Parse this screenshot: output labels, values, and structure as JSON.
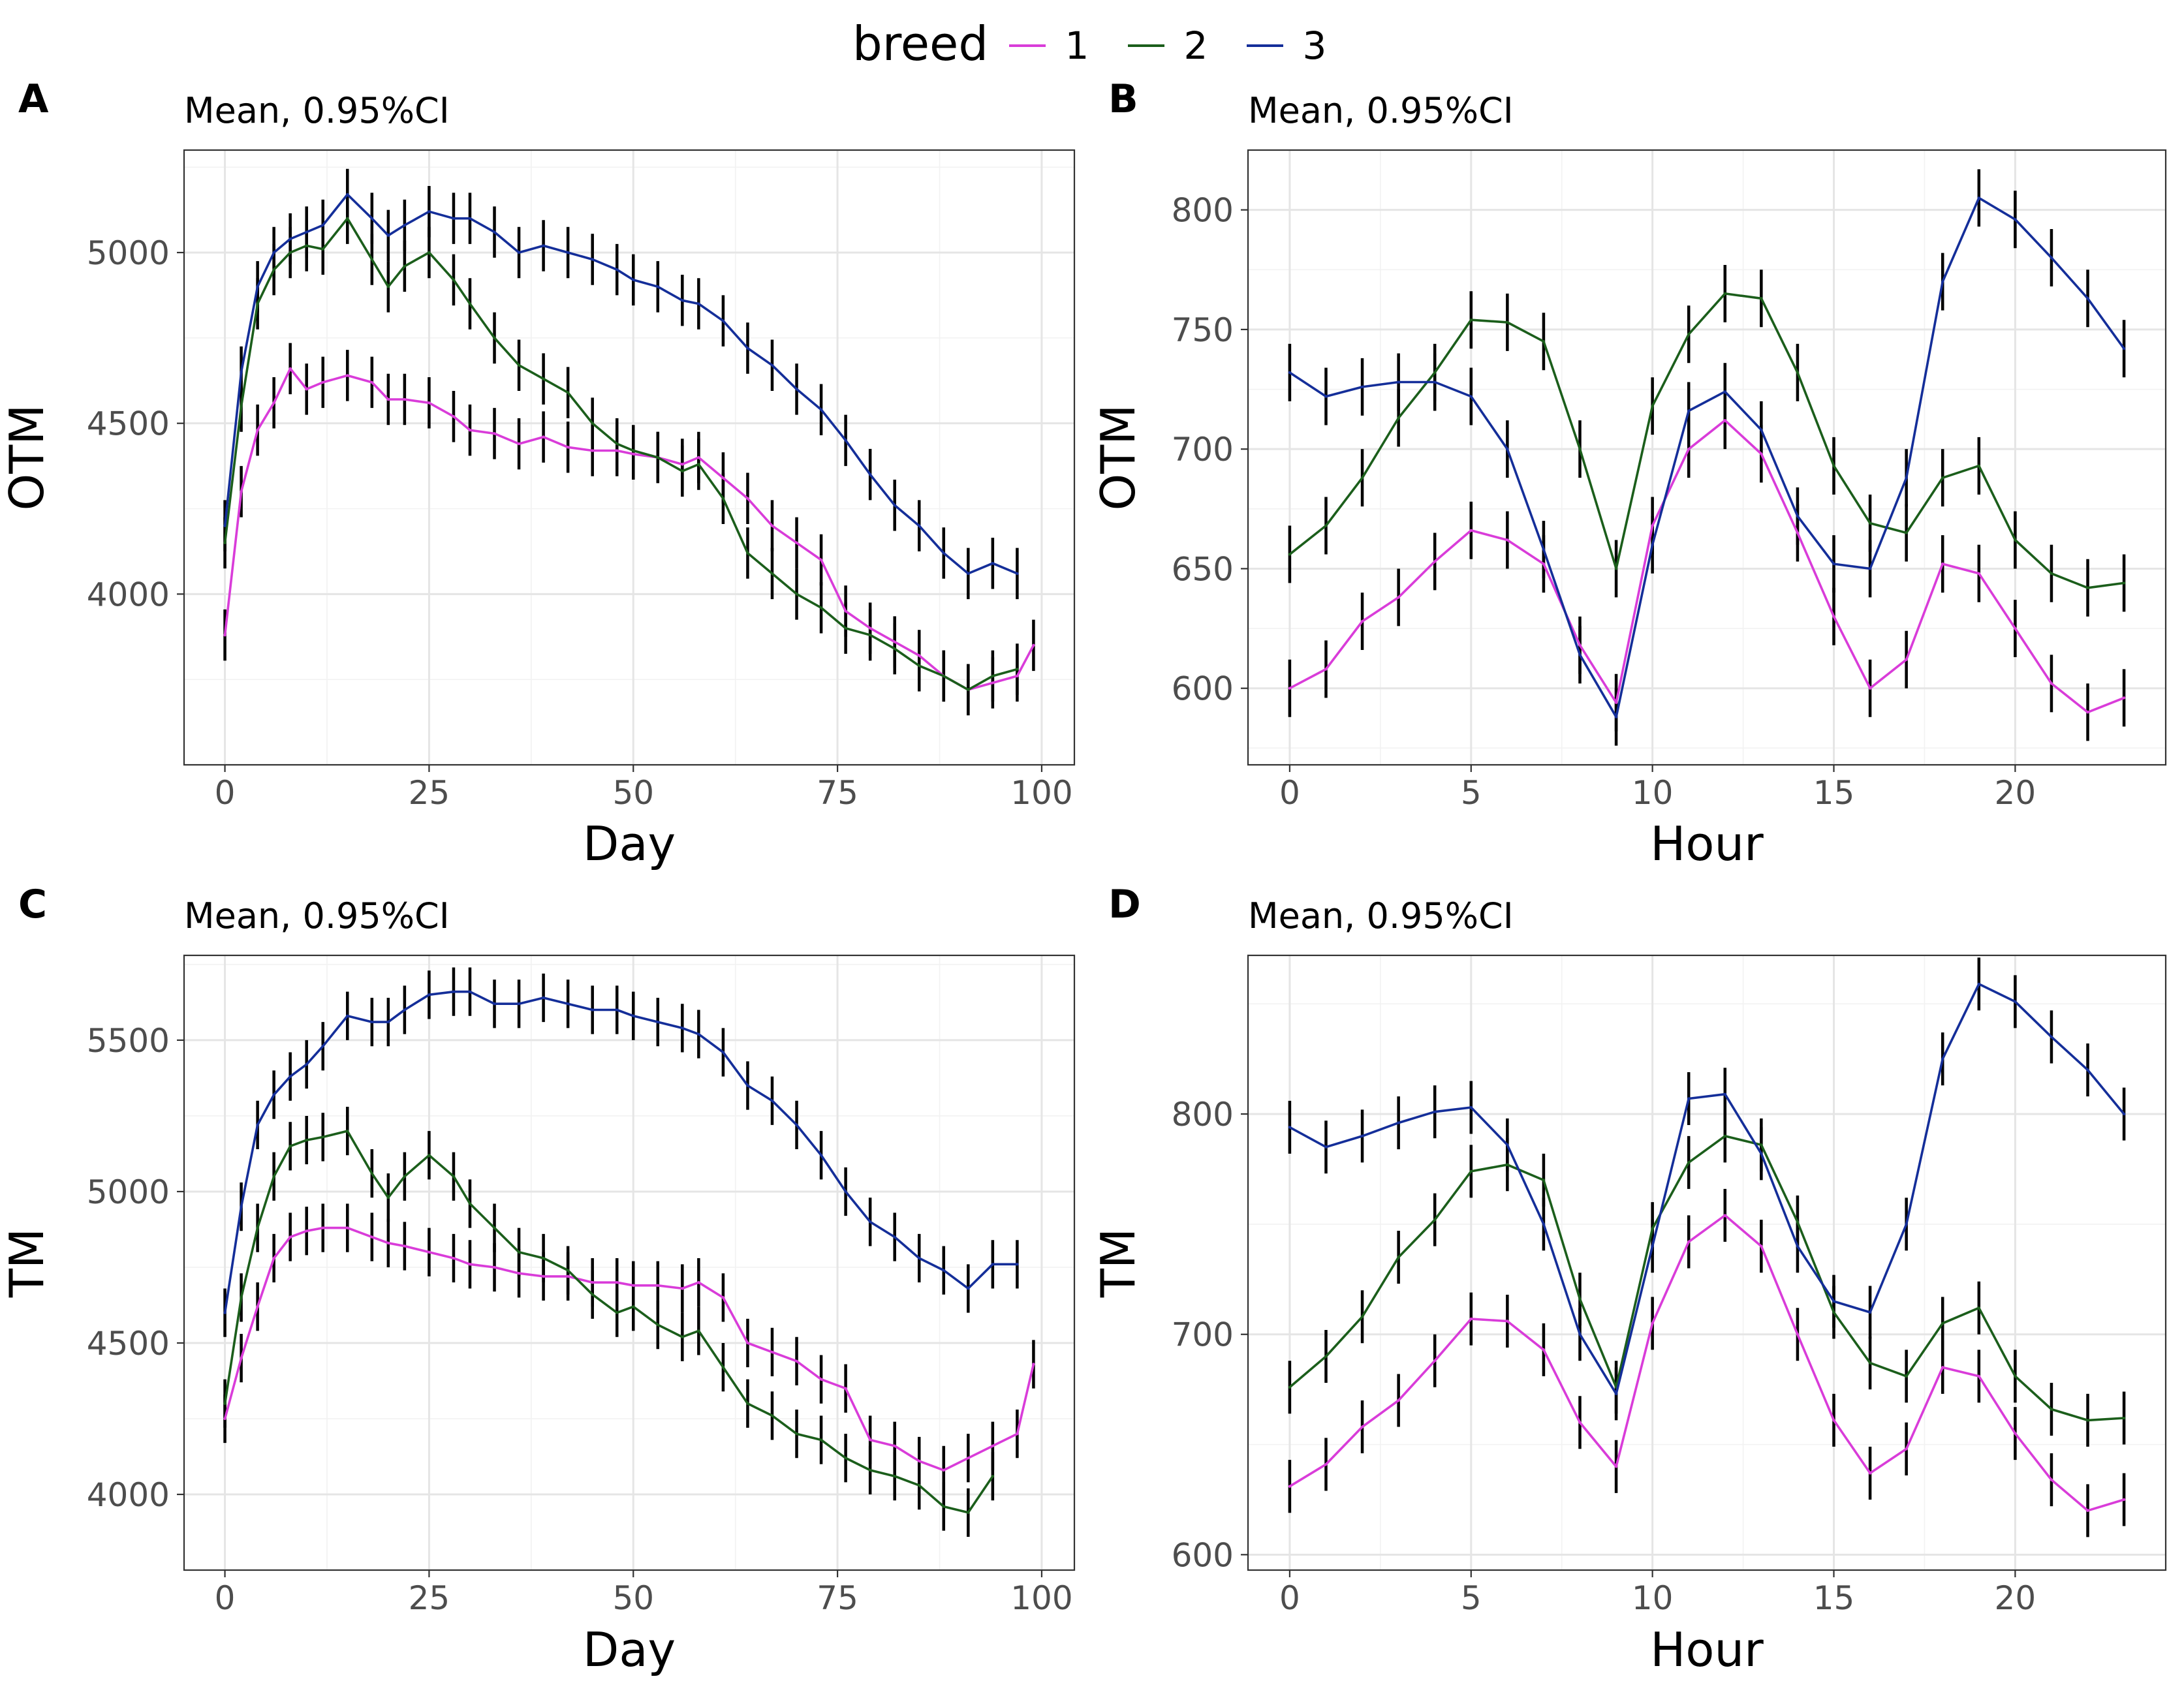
{
  "legend": {
    "title": "breed",
    "entries": [
      {
        "key": "1",
        "color": "#d93cd9"
      },
      {
        "key": "2",
        "color": "#1b5e1b"
      },
      {
        "key": "3",
        "color": "#142e99"
      }
    ]
  },
  "chart_data": [
    {
      "id": "A",
      "tag": "A",
      "type": "line",
      "subtitle": "Mean, 0.95%CI",
      "xlabel": "Day",
      "ylabel": "OTM",
      "xlim": [
        -5,
        104
      ],
      "ylim": [
        3500,
        5300
      ],
      "xticks": [
        0,
        25,
        50,
        75,
        100
      ],
      "yticks": [
        4000,
        4500,
        5000
      ],
      "err": 75,
      "series": [
        {
          "name": "1",
          "x": [
            0,
            2,
            4,
            6,
            8,
            10,
            12,
            15,
            18,
            20,
            22,
            25,
            28,
            30,
            33,
            36,
            39,
            42,
            45,
            48,
            50,
            53,
            56,
            58,
            61,
            64,
            67,
            70,
            73,
            76,
            79,
            82,
            85,
            88,
            91,
            94,
            97,
            99
          ],
          "values": [
            3880,
            4300,
            4480,
            4560,
            4660,
            4600,
            4620,
            4640,
            4620,
            4570,
            4570,
            4560,
            4520,
            4480,
            4470,
            4440,
            4460,
            4430,
            4420,
            4420,
            4410,
            4400,
            4380,
            4400,
            4340,
            4280,
            4200,
            4150,
            4100,
            3950,
            3900,
            3860,
            3820,
            3760,
            3720,
            3740,
            3760,
            3850
          ]
        },
        {
          "name": "2",
          "x": [
            0,
            2,
            4,
            6,
            8,
            10,
            12,
            15,
            18,
            20,
            22,
            25,
            28,
            30,
            33,
            36,
            39,
            42,
            45,
            48,
            50,
            53,
            56,
            58,
            61,
            64,
            67,
            70,
            73,
            76,
            79,
            82,
            85,
            88,
            91,
            94,
            97
          ],
          "values": [
            4150,
            4550,
            4850,
            4950,
            5000,
            5020,
            5010,
            5100,
            4980,
            4900,
            4960,
            5000,
            4920,
            4850,
            4750,
            4670,
            4630,
            4590,
            4500,
            4440,
            4420,
            4400,
            4360,
            4380,
            4280,
            4120,
            4060,
            4000,
            3960,
            3900,
            3880,
            3840,
            3790,
            3760,
            3720,
            3760,
            3780
          ]
        },
        {
          "name": "3",
          "x": [
            0,
            2,
            4,
            6,
            8,
            10,
            12,
            15,
            18,
            20,
            22,
            25,
            28,
            30,
            33,
            36,
            39,
            42,
            45,
            48,
            50,
            53,
            56,
            58,
            61,
            64,
            67,
            70,
            73,
            76,
            79,
            82,
            85,
            88,
            91,
            94,
            97
          ],
          "values": [
            4200,
            4650,
            4900,
            5000,
            5040,
            5060,
            5080,
            5170,
            5100,
            5050,
            5080,
            5120,
            5100,
            5100,
            5060,
            5000,
            5020,
            5000,
            4980,
            4950,
            4920,
            4900,
            4860,
            4850,
            4800,
            4720,
            4670,
            4600,
            4540,
            4450,
            4350,
            4260,
            4200,
            4120,
            4060,
            4090,
            4060
          ]
        }
      ]
    },
    {
      "id": "B",
      "tag": "B",
      "type": "line",
      "subtitle": "Mean, 0.95%CI",
      "xlabel": "Hour",
      "ylabel": "OTM",
      "xlim": [
        -1.15,
        24.15
      ],
      "ylim": [
        568,
        825
      ],
      "xticks": [
        0,
        5,
        10,
        15,
        20
      ],
      "yticks": [
        600,
        650,
        700,
        750,
        800
      ],
      "err": 12,
      "series": [
        {
          "name": "1",
          "x": [
            0,
            1,
            2,
            3,
            4,
            5,
            6,
            7,
            8,
            9,
            10,
            11,
            12,
            13,
            14,
            15,
            16,
            17,
            18,
            19,
            20,
            21,
            22,
            23
          ],
          "values": [
            600,
            608,
            628,
            638,
            653,
            666,
            662,
            652,
            618,
            594,
            668,
            700,
            712,
            698,
            665,
            630,
            600,
            612,
            652,
            648,
            625,
            602,
            590,
            596
          ]
        },
        {
          "name": "2",
          "x": [
            0,
            1,
            2,
            3,
            4,
            5,
            6,
            7,
            8,
            9,
            10,
            11,
            12,
            13,
            14,
            15,
            16,
            17,
            18,
            19,
            20,
            21,
            22,
            23
          ],
          "values": [
            656,
            668,
            688,
            713,
            732,
            754,
            753,
            745,
            700,
            650,
            718,
            748,
            765,
            763,
            732,
            693,
            669,
            665,
            688,
            693,
            662,
            648,
            642,
            644
          ]
        },
        {
          "name": "3",
          "x": [
            0,
            1,
            2,
            3,
            4,
            5,
            6,
            7,
            8,
            9,
            10,
            11,
            12,
            13,
            14,
            15,
            16,
            17,
            18,
            19,
            20,
            21,
            22,
            23
          ],
          "values": [
            732,
            722,
            726,
            728,
            728,
            722,
            700,
            658,
            614,
            588,
            660,
            716,
            724,
            708,
            672,
            652,
            650,
            688,
            770,
            805,
            796,
            780,
            763,
            742
          ]
        }
      ]
    },
    {
      "id": "C",
      "tag": "C",
      "type": "line",
      "subtitle": "Mean, 0.95%CI",
      "xlabel": "Day",
      "ylabel": "TM",
      "xlim": [
        -5,
        104
      ],
      "ylim": [
        3750,
        5780
      ],
      "xticks": [
        0,
        25,
        50,
        75,
        100
      ],
      "yticks": [
        4000,
        4500,
        5000,
        5500
      ],
      "err": 80,
      "series": [
        {
          "name": "1",
          "x": [
            0,
            2,
            4,
            6,
            8,
            10,
            12,
            15,
            18,
            20,
            22,
            25,
            28,
            30,
            33,
            36,
            39,
            42,
            45,
            48,
            50,
            53,
            56,
            58,
            61,
            64,
            67,
            70,
            73,
            76,
            79,
            82,
            85,
            88,
            91,
            94,
            97,
            99
          ],
          "values": [
            4250,
            4450,
            4620,
            4780,
            4850,
            4870,
            4880,
            4880,
            4850,
            4830,
            4820,
            4800,
            4780,
            4760,
            4750,
            4730,
            4720,
            4720,
            4700,
            4700,
            4690,
            4690,
            4680,
            4700,
            4650,
            4500,
            4470,
            4440,
            4380,
            4350,
            4180,
            4160,
            4110,
            4080,
            4120,
            4160,
            4200,
            4430
          ]
        },
        {
          "name": "2",
          "x": [
            0,
            2,
            4,
            6,
            8,
            10,
            12,
            15,
            18,
            20,
            22,
            25,
            28,
            30,
            33,
            36,
            39,
            42,
            45,
            48,
            50,
            53,
            56,
            58,
            61,
            64,
            67,
            70,
            73,
            76,
            79,
            82,
            85,
            88,
            91,
            94
          ],
          "values": [
            4300,
            4650,
            4880,
            5050,
            5150,
            5170,
            5180,
            5200,
            5060,
            4980,
            5050,
            5120,
            5050,
            4960,
            4880,
            4800,
            4780,
            4740,
            4660,
            4600,
            4620,
            4560,
            4520,
            4540,
            4420,
            4300,
            4260,
            4200,
            4180,
            4120,
            4080,
            4060,
            4030,
            3960,
            3940,
            4060
          ]
        },
        {
          "name": "3",
          "x": [
            0,
            2,
            4,
            6,
            8,
            10,
            12,
            15,
            18,
            20,
            22,
            25,
            28,
            30,
            33,
            36,
            39,
            42,
            45,
            48,
            50,
            53,
            56,
            58,
            61,
            64,
            67,
            70,
            73,
            76,
            79,
            82,
            85,
            88,
            91,
            94,
            97
          ],
          "values": [
            4600,
            4950,
            5220,
            5320,
            5380,
            5420,
            5480,
            5580,
            5560,
            5560,
            5600,
            5650,
            5660,
            5660,
            5620,
            5620,
            5640,
            5620,
            5600,
            5600,
            5580,
            5560,
            5540,
            5520,
            5460,
            5350,
            5300,
            5220,
            5120,
            5000,
            4900,
            4850,
            4780,
            4740,
            4680,
            4760,
            4760
          ]
        }
      ]
    },
    {
      "id": "D",
      "tag": "D",
      "type": "line",
      "subtitle": "Mean, 0.95%CI",
      "xlabel": "Hour",
      "ylabel": "TM",
      "xlim": [
        -1.15,
        24.15
      ],
      "ylim": [
        593,
        872
      ],
      "xticks": [
        0,
        5,
        10,
        15,
        20
      ],
      "yticks": [
        600,
        700,
        800
      ],
      "err": 12,
      "series": [
        {
          "name": "1",
          "x": [
            0,
            1,
            2,
            3,
            4,
            5,
            6,
            7,
            8,
            9,
            10,
            11,
            12,
            13,
            14,
            15,
            16,
            17,
            18,
            19,
            20,
            21,
            22,
            23
          ],
          "values": [
            631,
            641,
            658,
            670,
            688,
            707,
            706,
            693,
            660,
            640,
            705,
            742,
            754,
            740,
            700,
            661,
            637,
            648,
            685,
            681,
            655,
            634,
            620,
            625
          ]
        },
        {
          "name": "2",
          "x": [
            0,
            1,
            2,
            3,
            4,
            5,
            6,
            7,
            8,
            9,
            10,
            11,
            12,
            13,
            14,
            15,
            16,
            17,
            18,
            19,
            20,
            21,
            22,
            23
          ],
          "values": [
            676,
            690,
            708,
            735,
            752,
            774,
            777,
            770,
            716,
            676,
            748,
            778,
            790,
            786,
            751,
            710,
            687,
            681,
            705,
            712,
            681,
            666,
            661,
            662
          ]
        },
        {
          "name": "3",
          "x": [
            0,
            1,
            2,
            3,
            4,
            5,
            6,
            7,
            8,
            9,
            10,
            11,
            12,
            13,
            14,
            15,
            16,
            17,
            18,
            19,
            20,
            21,
            22,
            23
          ],
          "values": [
            794,
            785,
            790,
            796,
            801,
            803,
            786,
            750,
            700,
            673,
            740,
            807,
            809,
            782,
            740,
            715,
            710,
            750,
            825,
            859,
            851,
            835,
            820,
            800
          ]
        }
      ]
    }
  ]
}
